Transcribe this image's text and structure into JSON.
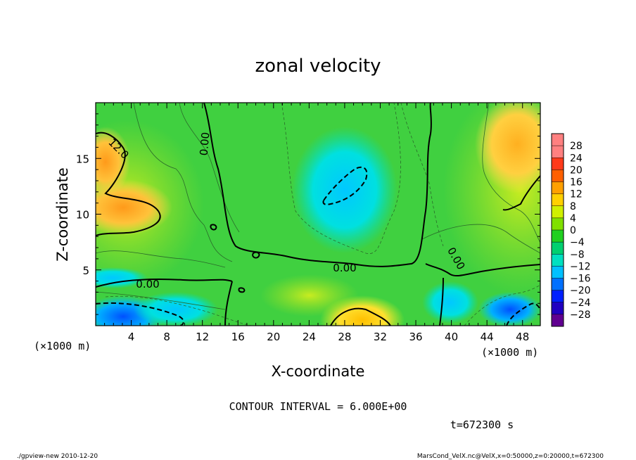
{
  "chart_data": {
    "type": "heatmap",
    "title": "zonal velocity",
    "xlabel": "X-coordinate",
    "ylabel": "Z-coordinate",
    "x_unit": "(×1000 m)",
    "y_unit": "(×1000 m)",
    "xlim": [
      0,
      50
    ],
    "ylim": [
      0,
      20
    ],
    "xticks": [
      4,
      8,
      12,
      16,
      20,
      24,
      28,
      32,
      36,
      40,
      44,
      48
    ],
    "yticks": [
      5,
      10,
      15
    ],
    "colorbar": {
      "levels": [
        28,
        24,
        20,
        16,
        12,
        8,
        4,
        0,
        -4,
        -8,
        -12,
        -16,
        -20,
        -24,
        -28
      ],
      "labels": [
        "28",
        "24",
        "20",
        "16",
        "12",
        "8",
        "4",
        "0",
        "−4",
        "−8",
        "−12",
        "−16",
        "−20",
        "−24",
        "−28"
      ],
      "colors": [
        "#ff8080",
        "#ff3a1a",
        "#ff6000",
        "#ffa000",
        "#ffd000",
        "#d0f000",
        "#80e000",
        "#20d020",
        "#00d070",
        "#00e0c0",
        "#00c0ff",
        "#0070ff",
        "#0020ff",
        "#2000c0",
        "#600090"
      ]
    },
    "contour_interval": 6.0,
    "contour_labels": [
      "0.00",
      "0.00",
      "0.00",
      "0.00",
      "12.0"
    ],
    "grid": false,
    "legend": "right"
  },
  "contour_interval_text": "CONTOUR INTERVAL = 6.000E+00",
  "time_text": "t=672300 s",
  "footer_left": "./gpview-new   2010-12-20",
  "footer_right": "MarsCond_VelX.nc@VelX,x=0:50000,z=0:20000,t=672300"
}
